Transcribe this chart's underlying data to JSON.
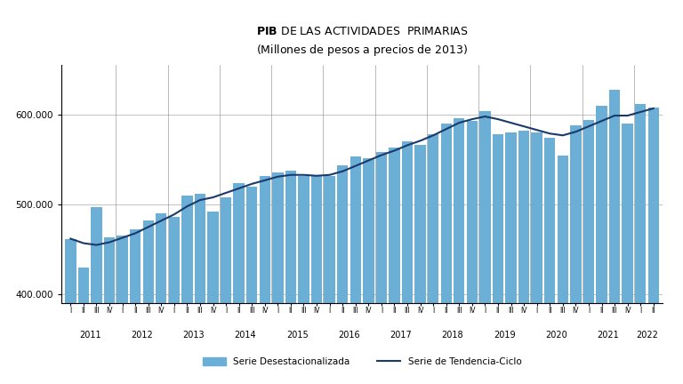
{
  "title_line1": "PIB DE LAS ACTIVIDADES  PRIMARIAS",
  "title_line2": "(Millones de pesos a precios de 2013)",
  "bar_color": "#6baed6",
  "line_color": "#1a3a6b",
  "ylabel_values": [
    400000,
    500000,
    600000
  ],
  "ylim": [
    390000,
    655000
  ],
  "legend_bar": "Serie Desestacionalizada",
  "legend_line": "Serie de Tendencia-Ciclo",
  "quarters": [
    "I",
    "II",
    "III",
    "IV",
    "I",
    "II",
    "III",
    "IV",
    "I",
    "II",
    "III",
    "IV",
    "I",
    "II",
    "III",
    "IV",
    "I",
    "II",
    "III",
    "IV",
    "I",
    "II",
    "III",
    "IV",
    "I",
    "II",
    "III",
    "IV",
    "I",
    "II",
    "III",
    "IV",
    "I",
    "II",
    "III",
    "IV",
    "I",
    "II",
    "III",
    "IV",
    "I",
    "II",
    "III",
    "IV",
    "I",
    "II"
  ],
  "years": [
    2011,
    2011,
    2011,
    2011,
    2012,
    2012,
    2012,
    2012,
    2013,
    2013,
    2013,
    2013,
    2014,
    2014,
    2014,
    2014,
    2015,
    2015,
    2015,
    2015,
    2016,
    2016,
    2016,
    2016,
    2017,
    2017,
    2017,
    2017,
    2018,
    2018,
    2018,
    2018,
    2019,
    2019,
    2019,
    2019,
    2020,
    2020,
    2020,
    2020,
    2021,
    2021,
    2021,
    2021,
    2022,
    2022
  ],
  "bar_values": [
    462000,
    430000,
    497000,
    463000,
    465000,
    472000,
    482000,
    490000,
    486000,
    510000,
    512000,
    492000,
    508000,
    524000,
    520000,
    532000,
    536000,
    538000,
    532000,
    532000,
    532000,
    544000,
    554000,
    552000,
    558000,
    563000,
    570000,
    566000,
    578000,
    590000,
    596000,
    593000,
    604000,
    578000,
    580000,
    582000,
    580000,
    574000,
    555000,
    588000,
    594000,
    610000,
    628000,
    590000,
    612000,
    608000
  ],
  "trend_values": [
    462000,
    457000,
    455000,
    458000,
    463000,
    468000,
    475000,
    482000,
    489000,
    498000,
    505000,
    508000,
    513000,
    518000,
    523000,
    527000,
    531000,
    533000,
    533000,
    532000,
    533000,
    537000,
    543000,
    549000,
    555000,
    560000,
    566000,
    571000,
    577000,
    584000,
    591000,
    595000,
    598000,
    595000,
    591000,
    587000,
    583000,
    579000,
    577000,
    581000,
    587000,
    593000,
    599000,
    599000,
    603000,
    607000
  ],
  "background_color": "#ffffff"
}
